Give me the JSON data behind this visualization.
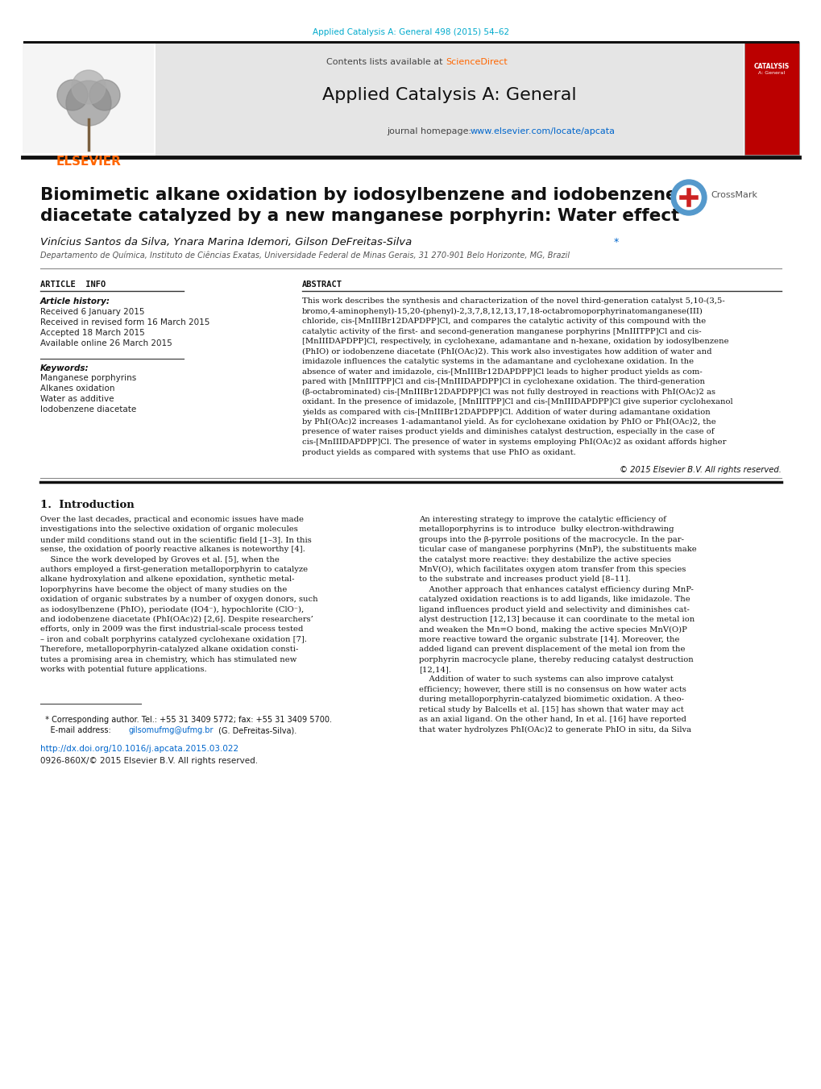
{
  "bg_color": "#ffffff",
  "page_width": 10.2,
  "page_height": 13.51,
  "journal_ref": "Applied Catalysis A: General 498 (2015) 54–62",
  "journal_ref_color": "#00AACC",
  "science_direct_color": "#FF6600",
  "journal_name": "Applied Catalysis A: General",
  "homepage_url": "www.elsevier.com/locate/apcata",
  "homepage_url_color": "#0066CC",
  "header_bg": "#e5e5e5",
  "elsevier_color": "#FF6600",
  "article_title_line1": "Biomimetic alkane oxidation by iodosylbenzene and iodobenzene",
  "article_title_line2": "diacetate catalyzed by a new manganese porphyrin: Water effect",
  "authors": "Vinícius Santos da Silva, Ynara Marina Idemori, Gilson DeFreitas-Silva",
  "affiliation": "Departamento de Química, Instituto de Ciências Exatas, Universidade Federal de Minas Gerais, 31 270-901 Belo Horizonte, MG, Brazil",
  "article_history_label": "Article history:",
  "received": "Received 6 January 2015",
  "revised": "Received in revised form 16 March 2015",
  "accepted": "Accepted 18 March 2015",
  "available": "Available online 26 March 2015",
  "keywords_label": "Keywords:",
  "keywords": [
    "Manganese porphyrins",
    "Alkanes oxidation",
    "Water as additive",
    "Iodobenzene diacetate"
  ],
  "abstract_lines": [
    "This work describes the synthesis and characterization of the novel third-generation catalyst 5,10-(3,5-",
    "bromo,4-aminophenyl)-15,20-(phenyl)-2,3,7,8,12,13,17,18-octabromoporphyrinatomanganese(III)",
    "chloride, cis-[MnIIIBr12DAPDPP]Cl, and compares the catalytic activity of this compound with the",
    "catalytic activity of the first- and second-generation manganese porphyrins [MnIIITPP]Cl and cis-",
    "[MnIIIDAPDPP]Cl, respectively, in cyclohexane, adamantane and n-hexane, oxidation by iodosylbenzene",
    "(PhIO) or iodobenzene diacetate (PhI(OAc)2). This work also investigates how addition of water and",
    "imidazole influences the catalytic systems in the adamantane and cyclohexane oxidation. In the",
    "absence of water and imidazole, cis-[MnIIIBr12DAPDPP]Cl leads to higher product yields as com-",
    "pared with [MnIIITPP]Cl and cis-[MnIIIDAPDPP]Cl in cyclohexane oxidation. The third-generation",
    "(β-octabrominated) cis-[MnIIIBr12DAPDPP]Cl was not fully destroyed in reactions with PhI(OAc)2 as",
    "oxidant. In the presence of imidazole, [MnIIITPP]Cl and cis-[MnIIIDAPDPP]Cl give superior cyclohexanol",
    "yields as compared with cis-[MnIIIBr12DAPDPP]Cl. Addition of water during adamantane oxidation",
    "by PhI(OAc)2 increases 1-adamantanol yield. As for cyclohexane oxidation by PhIO or PhI(OAc)2, the",
    "presence of water raises product yields and diminishes catalyst destruction, especially in the case of",
    "cis-[MnIIIDAPDPP]Cl. The presence of water in systems employing PhI(OAc)2 as oxidant affords higher",
    "product yields as compared with systems that use PhIO as oxidant."
  ],
  "copyright": "© 2015 Elsevier B.V. All rights reserved.",
  "intro_title": "1.  Introduction",
  "intro_l1": [
    "Over the last decades, practical and economic issues have made",
    "investigations into the selective oxidation of organic molecules",
    "under mild conditions stand out in the scientific field [1–3]. In this",
    "sense, the oxidation of poorly reactive alkanes is noteworthy [4].",
    "    Since the work developed by Groves et al. [5], when the",
    "authors employed a first-generation metalloporphyrin to catalyze",
    "alkane hydroxylation and alkene epoxidation, synthetic metal-",
    "loporphyrins have become the object of many studies on the",
    "oxidation of organic substrates by a number of oxygen donors, such",
    "as iodosylbenzene (PhIO), periodate (IO4⁻), hypochlorite (ClO⁻),",
    "and iodobenzene diacetate (PhI(OAc)2) [2,6]. Despite researchers’",
    "efforts, only in 2009 was the first industrial-scale process tested",
    "– iron and cobalt porphyrins catalyzed cyclohexane oxidation [7].",
    "Therefore, metalloporphyrin-catalyzed alkane oxidation consti-",
    "tutes a promising area in chemistry, which has stimulated new",
    "works with potential future applications."
  ],
  "intro_l2": [
    "An interesting strategy to improve the catalytic efficiency of",
    "metalloporphyrins is to introduce  bulky electron-withdrawing",
    "groups into the β-pyrrole positions of the macrocycle. In the par-",
    "ticular case of manganese porphyrins (MnP), the substituents make",
    "the catalyst more reactive: they destabilize the active species",
    "MnV(O), which facilitates oxygen atom transfer from this species",
    "to the substrate and increases product yield [8–11].",
    "    Another approach that enhances catalyst efficiency during MnP-",
    "catalyzed oxidation reactions is to add ligands, like imidazole. The",
    "ligand influences product yield and selectivity and diminishes cat-",
    "alyst destruction [12,13] because it can coordinate to the metal ion",
    "and weaken the Mn=O bond, making the active species MnV(O)P",
    "more reactive toward the organic substrate [14]. Moreover, the",
    "added ligand can prevent displacement of the metal ion from the",
    "porphyrin macrocycle plane, thereby reducing catalyst destruction",
    "[12,14].",
    "    Addition of water to such systems can also improve catalyst",
    "efficiency; however, there still is no consensus on how water acts",
    "during metalloporphyrin-catalyzed biomimetic oxidation. A theo-",
    "retical study by Balcells et al. [15] has shown that water may act",
    "as an axial ligand. On the other hand, In et al. [16] have reported",
    "that water hydrolyzes PhI(OAc)2 to generate PhIO in situ, da Silva"
  ],
  "footnote1": "  * Corresponding author. Tel.: +55 31 3409 5772; fax: +55 31 3409 5700.",
  "footnote2_label": "    E-mail address: ",
  "footnote2_email": "gilsomufmg@ufmg.br",
  "footnote2_rest": " (G. DeFreitas-Silva).",
  "doi_url": "http://dx.doi.org/10.1016/j.apcata.2015.03.022",
  "doi_color": "#0066CC",
  "issn": "0926-860X/© 2015 Elsevier B.V. All rights reserved."
}
